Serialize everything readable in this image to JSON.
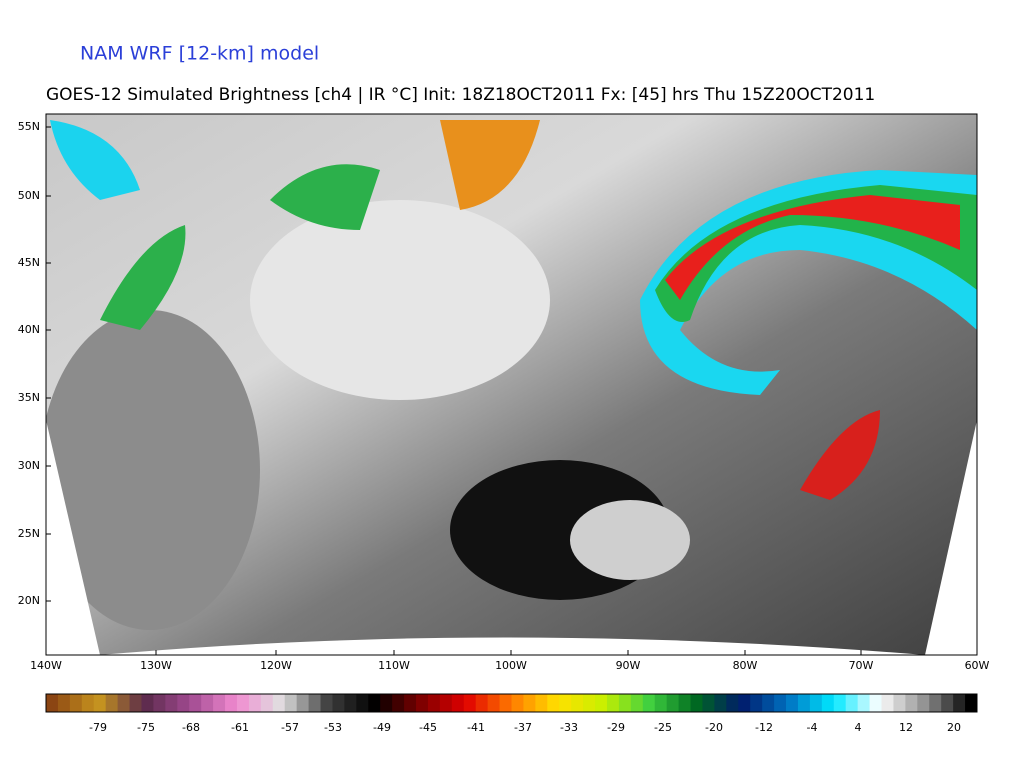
{
  "header": {
    "model": "NAM WRF [12-km] model",
    "title": "GOES-12 Simulated Brightness [ch4 | IR °C] Init: 18Z18OCT2011 Fx: [45] hrs Thu 15Z20OCT2011"
  },
  "map": {
    "lat_labels": [
      "55N",
      "50N",
      "45N",
      "40N",
      "35N",
      "30N",
      "25N",
      "20N"
    ],
    "lon_labels": [
      "140W",
      "130W",
      "120W",
      "110W",
      "100W",
      "90W",
      "80W",
      "70W",
      "60W"
    ]
  },
  "colorbar": {
    "labels": [
      -79,
      -75,
      -68,
      -61,
      -57,
      -53,
      -49,
      -45,
      -41,
      -37,
      -33,
      -29,
      -25,
      -20,
      -12,
      -4,
      4,
      12,
      20
    ]
  }
}
